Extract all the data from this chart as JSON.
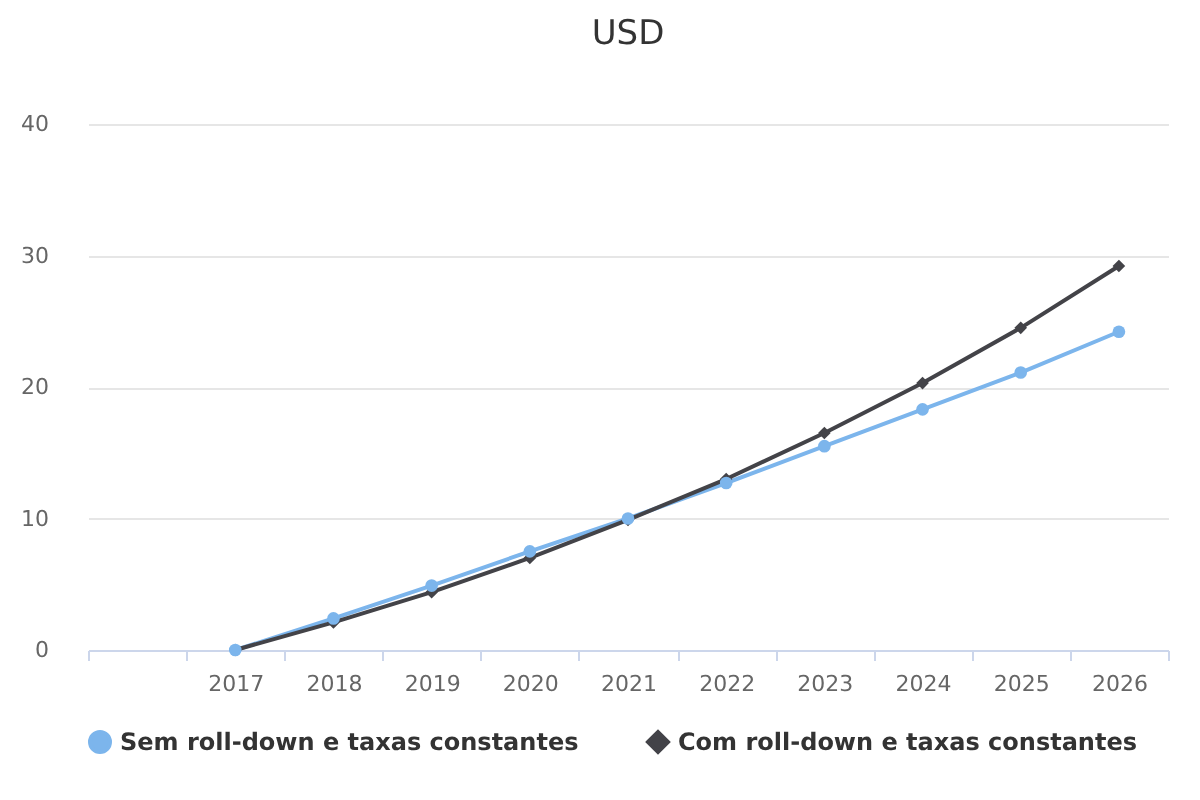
{
  "chart_data": {
    "type": "line",
    "title": "USD",
    "categories": [
      null,
      "2017",
      "2018",
      "2019",
      "2020",
      "2021",
      "2022",
      "2023",
      "2024",
      "2025",
      "2026"
    ],
    "series": [
      {
        "name": "Sem roll-down e taxas constantes",
        "color": "#7cb5ec",
        "marker": "circle",
        "values": [
          null,
          0,
          2.4,
          4.9,
          7.5,
          10.0,
          12.7,
          15.5,
          18.3,
          21.1,
          24.2
        ]
      },
      {
        "name": "Com roll-down e taxas constantes",
        "color": "#434348",
        "marker": "diamond",
        "values": [
          null,
          0,
          2.1,
          4.4,
          7.0,
          9.9,
          13.0,
          16.5,
          20.3,
          24.5,
          29.2
        ]
      }
    ],
    "ylim": [
      0,
      40
    ],
    "yticks": [
      0,
      10,
      20,
      30,
      40
    ],
    "grid": "y",
    "legend": "bottom"
  }
}
